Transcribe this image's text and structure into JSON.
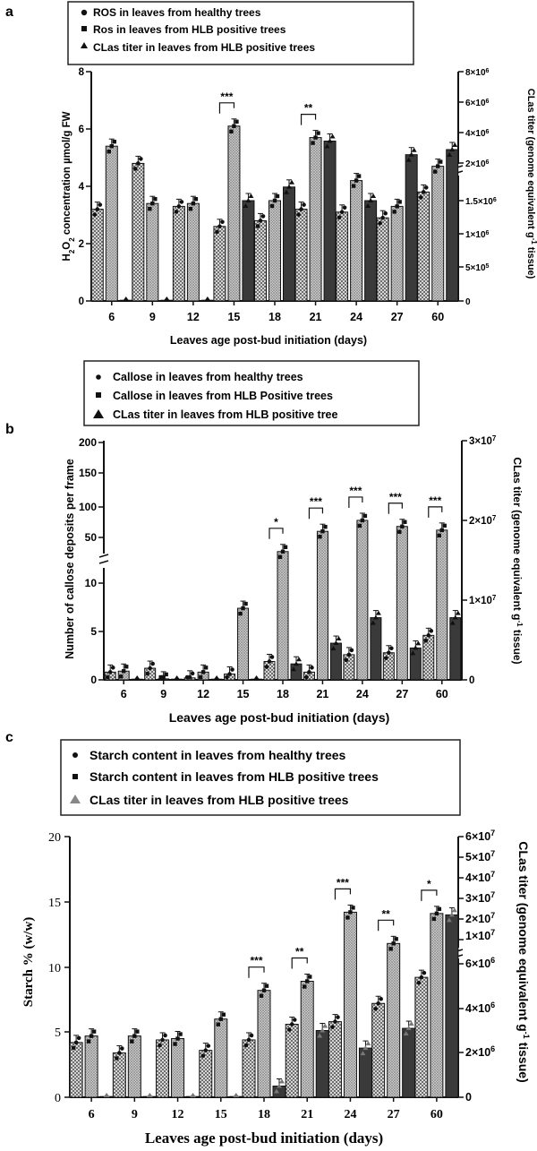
{
  "figure": {
    "panel_a_letter": "a",
    "panel_b_letter": "b",
    "panel_c_letter": "c"
  },
  "panels": [
    {
      "letter": "a",
      "legend": [
        "ROS in leaves from healthy trees",
        "Ros in leaves from HLB positive trees",
        "CLas titer in leaves from HLB positive trees"
      ],
      "ylabel_main": "H2O2 concentration µmol/g FW",
      "ylabel_right": "CLas titer (genome equivalent g-1 tissue)",
      "xlabel": "Leaves age post-bud initiation (days)"
    },
    {
      "letter": "b",
      "legend": [
        "Callose in leaves from healthy trees",
        "Callose in leaves from HLB Positive trees",
        "CLas titer in leaves from HLB positive tree"
      ],
      "ylabel_main": "Number of callose deposits per frame",
      "ylabel_right": "CLas titer (genome equivalent g-1 tissue)",
      "xlabel": "Leaves age post-bud initiation (days)"
    },
    {
      "letter": "c",
      "legend": [
        "Starch content in leaves from healthy trees",
        "Starch content in leaves from HLB positive trees",
        "CLas titer in leaves from HLB positive trees"
      ],
      "ylabel_main": "Starch % (w/w)",
      "ylabel_right": "CLas titer (genome equivalent g-1 tissue)",
      "xlabel": "Leaves age post-bud initiation (days)"
    }
  ],
  "chart_data": [
    {
      "type": "bar",
      "title": "",
      "categories": [
        "6",
        "9",
        "12",
        "15",
        "18",
        "21",
        "24",
        "27",
        "60"
      ],
      "xlabel": "Leaves age post-bud initiation (days)",
      "ylabel": "H2O2 concentration µmol/g FW",
      "ylabel_right": "CLas titer (genome equivalent g-1 tissue)",
      "ylim": [
        0,
        8
      ],
      "yticks": [
        "0",
        "2",
        "4",
        "6",
        "8"
      ],
      "right_axis": {
        "type": "broken",
        "lower_range": [
          0,
          2000000
        ],
        "upper_range": [
          2000000,
          8000000
        ],
        "tick_labels": [
          "0",
          "5×10⁵",
          "1×10⁶",
          "1.5×10⁶",
          "2×10⁶",
          "4×10⁶",
          "6×10⁶",
          "8×10⁶"
        ]
      },
      "series": [
        {
          "name": "ROS in leaves from healthy trees",
          "axis": "left",
          "values": [
            3.2,
            4.8,
            3.3,
            2.6,
            2.8,
            3.2,
            3.1,
            2.9,
            3.8
          ]
        },
        {
          "name": "Ros in leaves from HLB positive trees",
          "axis": "left",
          "values": [
            5.4,
            3.4,
            3.4,
            6.1,
            3.5,
            5.7,
            4.2,
            3.3,
            4.7
          ]
        },
        {
          "name": "CLas titer in leaves from HLB positive trees",
          "axis": "right",
          "values": [
            0,
            0,
            0,
            1500000,
            1700000,
            3500000,
            1500000,
            2700000,
            3000000
          ]
        }
      ],
      "significance": [
        {
          "category": "15",
          "label": "***"
        },
        {
          "category": "21",
          "label": "**"
        }
      ]
    },
    {
      "type": "bar",
      "title": "",
      "categories": [
        "6",
        "9",
        "12",
        "15",
        "18",
        "21",
        "24",
        "27",
        "60"
      ],
      "xlabel": "Leaves age post-bud initiation (days)",
      "ylabel": "Number of callose deposits per frame",
      "ylabel_right": "CLas titer (genome equivalent g-1 tissue)",
      "y_axis": {
        "type": "broken",
        "lower_range": [
          0,
          12
        ],
        "upper_range": [
          12,
          200
        ],
        "tick_labels": [
          "0",
          "5",
          "10",
          "50",
          "100",
          "150",
          "200"
        ]
      },
      "right_axis": {
        "range": [
          0,
          30000000
        ],
        "tick_labels": [
          "0",
          "1×10⁷",
          "2×10⁷",
          "3×10⁷"
        ]
      },
      "series": [
        {
          "name": "Callose in leaves from healthy trees",
          "axis": "left",
          "values": [
            0.8,
            1.2,
            0.2,
            0.6,
            1.9,
            0.8,
            2.6,
            2.8,
            4.6
          ]
        },
        {
          "name": "Callose in leaves from HLB Positive trees",
          "axis": "left",
          "values": [
            0.9,
            0.1,
            0.8,
            7.4,
            35,
            60,
            78,
            68,
            62
          ]
        },
        {
          "name": "CLas titer in leaves from HLB positive tree",
          "axis": "right",
          "values": [
            0,
            0,
            0,
            0,
            2000000,
            4600000,
            7800000,
            4000000,
            7800000
          ]
        }
      ],
      "significance": [
        {
          "category": "18",
          "label": "*"
        },
        {
          "category": "21",
          "label": "***"
        },
        {
          "category": "24",
          "label": "***"
        },
        {
          "category": "27",
          "label": "***"
        },
        {
          "category": "60",
          "label": "***"
        }
      ]
    },
    {
      "type": "bar",
      "title": "",
      "categories": [
        "6",
        "9",
        "12",
        "15",
        "18",
        "21",
        "24",
        "27",
        "60"
      ],
      "xlabel": "Leaves age post-bud initiation (days)",
      "ylabel": "Starch % (w/w)",
      "ylabel_right": "CLas titer (genome equivalent g-1 tissue)",
      "ylim": [
        0,
        20
      ],
      "yticks": [
        "0",
        "5",
        "10",
        "15",
        "20"
      ],
      "right_axis": {
        "type": "broken",
        "lower_range": [
          0,
          6000000
        ],
        "upper_range": [
          6000000,
          60000000
        ],
        "tick_labels": [
          "0",
          "2×10⁶",
          "4×10⁶",
          "6×10⁶",
          "1×10⁷",
          "2×10⁷",
          "3×10⁷",
          "4×10⁷",
          "5×10⁷",
          "6×10⁷"
        ]
      },
      "series": [
        {
          "name": "Starch content in leaves from healthy trees",
          "axis": "left",
          "values": [
            4.2,
            3.4,
            4.4,
            3.6,
            4.4,
            5.6,
            5.8,
            7.2,
            9.2
          ]
        },
        {
          "name": "Starch content in leaves from HLB positive trees",
          "axis": "left",
          "values": [
            4.7,
            4.7,
            4.5,
            6.0,
            8.2,
            8.9,
            14.2,
            11.8,
            14.1
          ]
        },
        {
          "name": "CLas titer in leaves from HLB positive trees",
          "axis": "right",
          "values": [
            0,
            0,
            0,
            0,
            500000,
            3000000,
            2200000,
            3100000,
            22000000
          ]
        }
      ],
      "significance": [
        {
          "category": "18",
          "label": "***"
        },
        {
          "category": "21",
          "label": "**"
        },
        {
          "category": "24",
          "label": "***"
        },
        {
          "category": "27",
          "label": "**"
        },
        {
          "category": "60",
          "label": "*"
        }
      ]
    }
  ]
}
